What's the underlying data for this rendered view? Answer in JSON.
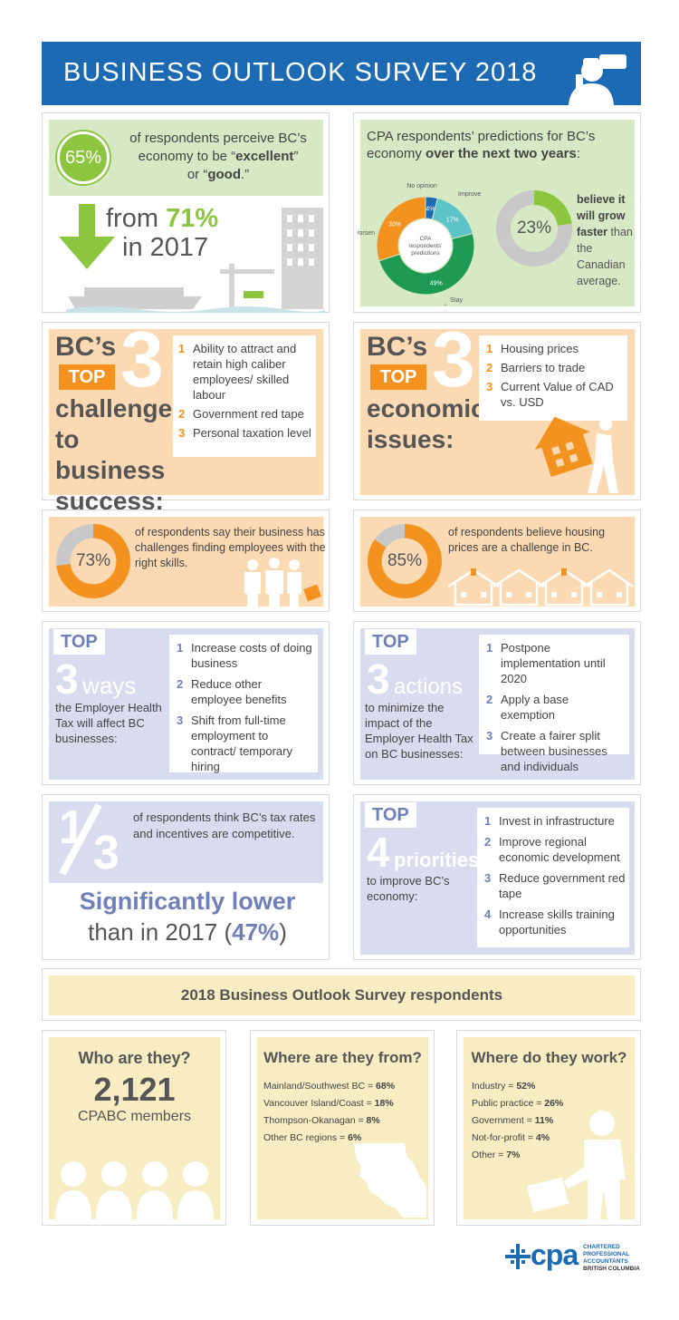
{
  "header": {
    "title": "BUSINESS OUTLOOK SURVEY 2018"
  },
  "perception": {
    "pct": "65%",
    "text_a": "of respondents perceive BC’s",
    "text_b": "economy to be “",
    "bold_a": "excellent",
    "text_c": "”",
    "text_d": "or “",
    "bold_b": "good",
    "text_e": ".”",
    "from_label": "from",
    "from_value": "71%",
    "year": "in 2017"
  },
  "predictions": {
    "title_a": "CPA respondents’ predictions for BC’s",
    "title_b": "economy ",
    "title_bold": "over the next two years",
    "title_c": ":",
    "center_label": "CPA respondents’ predictions",
    "growth_pct": "23%",
    "growth_bold": "believe it will grow faster",
    "growth_rest": "than the Canadian average.",
    "chart_data": {
      "type": "pie",
      "categories": [
        "No opinion",
        "Improve",
        "Stay the same",
        "Worsen"
      ],
      "values": [
        4,
        17,
        49,
        30
      ],
      "labels": [
        "4%",
        "17%",
        "49%",
        "30%"
      ],
      "colors": [
        "#1b6ab3",
        "#5cc4c9",
        "#1f9a54",
        "#f4921f"
      ]
    }
  },
  "challenges": {
    "bcs": "BC’s",
    "top": "TOP",
    "num": "3",
    "title": "challenges to business success:",
    "items": [
      {
        "n": "1",
        "text": "Ability to attract and retain high caliber employees/ skilled labour"
      },
      {
        "n": "2",
        "text": "Government red tape"
      },
      {
        "n": "3",
        "text": "Personal taxation level"
      }
    ]
  },
  "issues": {
    "bcs": "BC’s",
    "top": "TOP",
    "num": "3",
    "title": "economic issues:",
    "items": [
      {
        "n": "1",
        "text": "Housing prices"
      },
      {
        "n": "2",
        "text": "Barriers to trade"
      },
      {
        "n": "3",
        "text": "Current Value of CAD vs. USD"
      }
    ]
  },
  "employees": {
    "pct": "73%",
    "value": 73,
    "text": "of respondents say their business has challenges finding employees with the right skills."
  },
  "housing": {
    "pct": "85%",
    "value": 85,
    "text": "of respondents believe housing prices are a challenge in BC."
  },
  "ways": {
    "top": "TOP",
    "num": "3",
    "word": "ways",
    "desc": "the Employer Health Tax will affect BC businesses:",
    "items": [
      {
        "n": "1",
        "text": "Increase costs of doing business"
      },
      {
        "n": "2",
        "text": "Reduce other employee benefits"
      },
      {
        "n": "3",
        "text": "Shift from full-time employment to contract/ temporary hiring"
      }
    ]
  },
  "actions": {
    "top": "TOP",
    "num": "3",
    "word": "actions",
    "desc": "to minimize the impact of the Employer Health Tax on BC businesses:",
    "items": [
      {
        "n": "1",
        "text": "Postpone implementation until 2020"
      },
      {
        "n": "2",
        "text": "Apply a base exemption"
      },
      {
        "n": "3",
        "text": "Create a fairer split between businesses and individuals"
      }
    ]
  },
  "tax": {
    "frac_num": "1",
    "frac_den": "3",
    "text": "of respondents think BC’s tax rates and incentives are competitive.",
    "bold": "Significantly lower",
    "rest": "than in 2017 (",
    "rest_pct": "47%",
    "rest_end": ")"
  },
  "priorities": {
    "top": "TOP",
    "num": "4",
    "word": "priorities",
    "desc": "to improve BC’s economy:",
    "items": [
      {
        "n": "1",
        "text": "Invest in infrastructure"
      },
      {
        "n": "2",
        "text": "Improve regional economic development"
      },
      {
        "n": "3",
        "text": "Reduce government red tape"
      },
      {
        "n": "4",
        "text": "Increase skills training opportunities"
      }
    ]
  },
  "respondents": {
    "banner": "2018 Business Outlook Survey respondents",
    "who": {
      "title": "Who are they?",
      "count": "2,121",
      "sub": "CPABC members"
    },
    "where_from": {
      "title": "Where are they from?",
      "rows": [
        {
          "label": "Mainland/Southwest BC = ",
          "value": "68%"
        },
        {
          "label": "Vancouver Island/Coast = ",
          "value": "18%"
        },
        {
          "label": "Thompson-Okanagan = ",
          "value": "8%"
        },
        {
          "label": "Other BC regions = ",
          "value": "6%"
        }
      ]
    },
    "where_work": {
      "title": "Where do they work?",
      "rows": [
        {
          "label": "Industry = ",
          "value": "52%"
        },
        {
          "label": "Public practice = ",
          "value": "26%"
        },
        {
          "label": "Government = ",
          "value": "11%"
        },
        {
          "label": "Not-for-profit = ",
          "value": "4%"
        },
        {
          "label": "Other = ",
          "value": "7%"
        }
      ]
    }
  },
  "logo": {
    "mark": "cpa",
    "l1": "CHARTERED",
    "l2": "PROFESSIONAL",
    "l3": "ACCOUNTANTS",
    "l4": "BRITISH COLUMBIA"
  },
  "colors": {
    "blue": "#1b6ab3",
    "green_panel": "#d7e8c4",
    "orange_panel": "#fbd9b3",
    "lavender_panel": "#d9dcef",
    "yellow_panel": "#f7ecc2",
    "orange": "#f4921f",
    "green": "#8cc63f"
  }
}
